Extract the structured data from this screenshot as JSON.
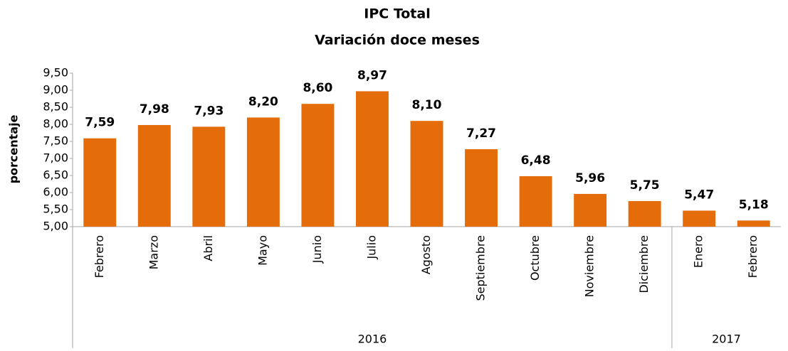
{
  "chart_data": {
    "type": "bar",
    "title": "IPC Total",
    "subtitle": "Variación doce meses",
    "y_label": "porcentaje",
    "categories": [
      "Febrero",
      "Marzo",
      "Abril",
      "Mayo",
      "Junio",
      "Julio",
      "Agosto",
      "Septiembre",
      "Octubre",
      "Noviembre",
      "Diciembre",
      "Enero",
      "Febrero"
    ],
    "groups": [
      {
        "label": "2016",
        "size": 11
      },
      {
        "label": "2017",
        "size": 2
      }
    ],
    "values": [
      7.59,
      7.98,
      7.93,
      8.2,
      8.6,
      8.97,
      8.1,
      7.27,
      6.48,
      5.96,
      5.75,
      5.47,
      5.18
    ],
    "value_labels": [
      "7,59",
      "7,98",
      "7,93",
      "8,20",
      "8,60",
      "8,97",
      "8,10",
      "7,27",
      "6,48",
      "5,96",
      "5,75",
      "5,47",
      "5,18"
    ],
    "color": "#e46c0a",
    "ylim": [
      5,
      9.5
    ],
    "yticks": [
      {
        "value": 5,
        "label": "5,00"
      },
      {
        "value": 5.5,
        "label": "5,50"
      },
      {
        "value": 6,
        "label": "6,00"
      },
      {
        "value": 6.5,
        "label": "6,50"
      },
      {
        "value": 7,
        "label": "7,00"
      },
      {
        "value": 7.5,
        "label": "7,50"
      },
      {
        "value": 8,
        "label": "8,00"
      },
      {
        "value": 8.5,
        "label": "8,50"
      },
      {
        "value": 9,
        "label": "9,00"
      },
      {
        "value": 9.5,
        "label": "9,50"
      }
    ],
    "grid": false
  }
}
